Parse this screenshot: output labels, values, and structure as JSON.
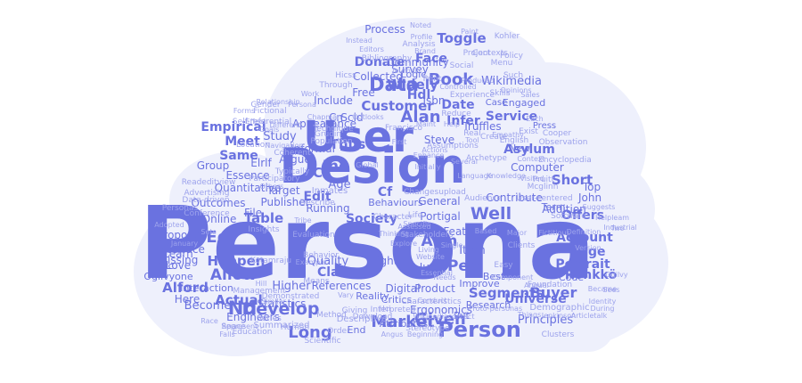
{
  "colors": {
    "background": "#ffffff",
    "cloud_fill": "#eef0fc",
    "word_main": "#6a72e0",
    "word_light": "#9da3ec",
    "word_faint": "#b9bdf2"
  },
  "words": [
    {
      "text": "Persona",
      "tier": "main"
    },
    {
      "text": "Design",
      "tier": "main"
    },
    {
      "text": "User",
      "tier": "main"
    },
    {
      "text": "Person",
      "tier": "main"
    },
    {
      "text": "Data",
      "tier": "main"
    },
    {
      "text": "Book",
      "tier": "main"
    },
    {
      "text": "Alan",
      "tier": "main"
    },
    {
      "text": "Well",
      "tier": "main"
    },
    {
      "text": "Market",
      "tier": "main"
    },
    {
      "text": "Given",
      "tier": "main"
    },
    {
      "text": "Nd",
      "tier": "main"
    },
    {
      "text": "Develop",
      "tier": "main"
    },
    {
      "text": "Long",
      "tier": "main"
    },
    {
      "text": "Customer",
      "tier": "main"
    },
    {
      "text": "Hdl",
      "tier": "main"
    },
    {
      "text": "Inc",
      "tier": "main"
    },
    {
      "text": "Thus",
      "tier": "main"
    },
    {
      "text": "Account",
      "tier": "main"
    },
    {
      "text": "Portrait",
      "tier": "main"
    },
    {
      "text": "Segments",
      "tier": "main"
    },
    {
      "text": "Buyer",
      "tier": "main"
    },
    {
      "text": "Society",
      "tier": "main"
    },
    {
      "text": "Acm",
      "tier": "main"
    },
    {
      "text": "Pen",
      "tier": "main"
    },
    {
      "text": "Item",
      "tier": "main"
    },
    {
      "text": "Claim",
      "tier": "main"
    },
    {
      "text": "Table",
      "tier": "main"
    },
    {
      "text": "Ed",
      "tier": "main"
    },
    {
      "text": "Allow",
      "tier": "main"
    },
    {
      "text": "Happen",
      "tier": "main"
    },
    {
      "text": "Actual",
      "tier": "main"
    },
    {
      "text": "Alford",
      "tier": "main"
    },
    {
      "text": "Short",
      "tier": "main"
    },
    {
      "text": "Edge",
      "tier": "main"
    },
    {
      "text": "Face",
      "tier": "main"
    },
    {
      "text": "Toggle",
      "tier": "main"
    },
    {
      "text": "Process",
      "tier": "main"
    },
    {
      "text": "Donate",
      "tier": "main"
    },
    {
      "text": "Date",
      "tier": "main"
    },
    {
      "text": "Infer",
      "tier": "main"
    },
    {
      "text": "Service",
      "tier": "main"
    },
    {
      "text": "Meet",
      "tier": "main"
    },
    {
      "text": "Same",
      "tier": "main"
    },
    {
      "text": "Edit",
      "tier": "main"
    },
    {
      "text": "Cs",
      "tier": "main"
    },
    {
      "text": "Empirical",
      "tier": "main"
    },
    {
      "text": "Study",
      "tier": "main"
    },
    {
      "text": "Age",
      "tier": "main"
    },
    {
      "text": "Widely",
      "tier": "main"
    },
    {
      "text": "Cf",
      "tier": "main"
    },
    {
      "text": "Universe",
      "tier": "main"
    },
    {
      "text": "Offers",
      "tier": "main"
    },
    {
      "text": "Rönkkö",
      "tier": "main"
    },
    {
      "text": "Principles",
      "tier": "main"
    },
    {
      "text": "Higher",
      "tier": "main"
    },
    {
      "text": "References",
      "tier": "main"
    },
    {
      "text": "Become",
      "tier": "main"
    },
    {
      "text": "Here",
      "tier": "main"
    },
    {
      "text": "Love",
      "tier": "main"
    },
    {
      "text": "Learn",
      "tier": "main"
    },
    {
      "text": "Missing",
      "tier": "main"
    },
    {
      "text": "Proposed",
      "tier": "main"
    },
    {
      "text": "Interface",
      "tier": "main"
    },
    {
      "text": "Introduce",
      "tier": "main"
    },
    {
      "text": "Engineers",
      "tier": "main"
    },
    {
      "text": "Asylum",
      "tier": "main"
    },
    {
      "text": "Wikimedia",
      "tier": "main"
    },
    {
      "text": "Survey",
      "tier": "main"
    },
    {
      "text": "Community",
      "tier": "main"
    },
    {
      "text": "Collected",
      "tier": "main"
    },
    {
      "text": "Free",
      "tier": "main"
    },
    {
      "text": "Include",
      "tier": "main"
    },
    {
      "text": "Appearance",
      "tier": "main"
    },
    {
      "text": "Group",
      "tier": "main"
    },
    {
      "text": "Elrlf",
      "tier": "main"
    },
    {
      "text": "Essence",
      "tier": "main"
    },
    {
      "text": "Quantitative",
      "tier": "main"
    },
    {
      "text": "File",
      "tier": "main"
    },
    {
      "text": "Target",
      "tier": "main"
    },
    {
      "text": "Publisher",
      "tier": "main"
    },
    {
      "text": "Running",
      "tier": "main"
    },
    {
      "text": "Behaviours",
      "tier": "main"
    },
    {
      "text": "General",
      "tier": "main"
    },
    {
      "text": "Portigal",
      "tier": "main"
    },
    {
      "text": "Feature",
      "tier": "main"
    },
    {
      "text": "Contribute",
      "tier": "main"
    },
    {
      "text": "Addition",
      "tier": "main"
    },
    {
      "text": "Computer",
      "tier": "main"
    },
    {
      "text": "Attributes",
      "tier": "main"
    },
    {
      "text": "Digital",
      "tier": "main"
    },
    {
      "text": "Product",
      "tier": "main"
    },
    {
      "text": "Put",
      "tier": "main"
    },
    {
      "text": "Improve",
      "tier": "main"
    },
    {
      "text": "Jump",
      "tier": "main"
    },
    {
      "text": "Best",
      "tier": "main"
    },
    {
      "text": "Quality",
      "tier": "main"
    },
    {
      "text": "Eight",
      "tier": "main"
    },
    {
      "text": "Steve",
      "tier": "main"
    },
    {
      "text": "Truffles",
      "tier": "main"
    },
    {
      "text": "Informal",
      "tier": "main"
    },
    {
      "text": "Argue",
      "tier": "main"
    },
    {
      "text": "Cn",
      "tier": "main"
    },
    {
      "text": "Scid",
      "tier": "main"
    },
    {
      "text": "Isbn",
      "tier": "main"
    },
    {
      "text": "Reality",
      "tier": "main"
    },
    {
      "text": "Critics",
      "tier": "main"
    },
    {
      "text": "Ergonomics",
      "tier": "main"
    },
    {
      "text": "Research",
      "tier": "main"
    },
    {
      "text": "End",
      "tier": "main"
    },
    {
      "text": "Statistics",
      "tier": "main"
    },
    {
      "text": "San",
      "tier": "main"
    },
    {
      "text": "Online",
      "tier": "main"
    },
    {
      "text": "Outcomes",
      "tier": "main"
    },
    {
      "text": "Interaction",
      "tier": "main"
    },
    {
      "text": "Ogilvyone",
      "tier": "main"
    },
    {
      "text": "Etc",
      "tier": "main"
    },
    {
      "text": "Draw",
      "tier": "main"
    },
    {
      "text": "Top",
      "tier": "main"
    },
    {
      "text": "John",
      "tier": "main"
    },
    {
      "text": "Code",
      "tier": "main"
    },
    {
      "text": "Term",
      "tier": "main"
    },
    {
      "text": "Logic",
      "tier": "main"
    },
    {
      "text": "New",
      "tier": "main"
    },
    {
      "text": "Engaged",
      "tier": "main"
    },
    {
      "text": "Case",
      "tier": "main"
    },
    {
      "text": "Press",
      "tier": "main"
    },
    {
      "text": "Summarized",
      "tier": "light"
    },
    {
      "text": "Descriptive",
      "tier": "light"
    },
    {
      "text": "Interpreted",
      "tier": "light"
    },
    {
      "text": "Characteristics",
      "tier": "light"
    },
    {
      "text": "Demographic",
      "tier": "light"
    },
    {
      "text": "Clusters",
      "tier": "light"
    },
    {
      "text": "Foundation",
      "tier": "light"
    },
    {
      "text": "Management",
      "tier": "light"
    },
    {
      "text": "Demonstrated",
      "tier": "light"
    },
    {
      "text": "Inmates",
      "tier": "light"
    },
    {
      "text": "Describe",
      "tier": "light"
    },
    {
      "text": "Participatory",
      "tier": "light"
    },
    {
      "text": "Typically",
      "tier": "light"
    },
    {
      "text": "Coherent",
      "tier": "light"
    },
    {
      "text": "Changesupload",
      "tier": "light"
    },
    {
      "text": "Audience",
      "tier": "light"
    },
    {
      "text": "Archetype",
      "tier": "light"
    },
    {
      "text": "Encyclopedia",
      "tier": "light"
    },
    {
      "text": "Observation",
      "tier": "light"
    },
    {
      "text": "Mcglinn",
      "tier": "light"
    },
    {
      "text": "Pruitt",
      "tier": "light"
    },
    {
      "text": "User-centered",
      "tier": "light"
    },
    {
      "text": "Software",
      "tier": "light"
    },
    {
      "text": "Conference",
      "tier": "light"
    },
    {
      "text": "Advertising",
      "tier": "light"
    },
    {
      "text": "Readeditview",
      "tier": "light"
    },
    {
      "text": "Data-driven",
      "tier": "light"
    },
    {
      "text": "Personas",
      "tier": "light"
    },
    {
      "text": "Bibliography",
      "tier": "light"
    },
    {
      "text": "Hicss",
      "tier": "light"
    },
    {
      "text": "Self-referential",
      "tier": "light"
    },
    {
      "text": "Fictional",
      "tier": "light"
    },
    {
      "text": "Gender",
      "tier": "light"
    },
    {
      "text": "Location",
      "tier": "light"
    },
    {
      "text": "Grudin",
      "tier": "light"
    },
    {
      "text": "Population",
      "tier": "light"
    },
    {
      "text": "Through",
      "tier": "light"
    },
    {
      "text": "Social",
      "tier": "light"
    },
    {
      "text": "Menu",
      "tier": "light"
    },
    {
      "text": "Policy",
      "tier": "light"
    },
    {
      "text": "Such",
      "tier": "light"
    },
    {
      "text": "Skills",
      "tier": "light"
    },
    {
      "text": "Kohler",
      "tier": "light"
    },
    {
      "text": "Contexts",
      "tier": "light"
    },
    {
      "text": "Project",
      "tier": "light"
    },
    {
      "text": "Analysis",
      "tier": "light"
    },
    {
      "text": "Print",
      "tier": "light"
    },
    {
      "text": "Experience",
      "tier": "light"
    },
    {
      "text": "Francisco",
      "tier": "light"
    },
    {
      "text": "Reduce",
      "tier": "light"
    },
    {
      "text": "Real",
      "tier": "light"
    },
    {
      "text": "English",
      "tier": "light"
    },
    {
      "text": "Create",
      "tier": "light"
    },
    {
      "text": "Exist",
      "tier": "light"
    },
    {
      "text": "Cooper",
      "tier": "light"
    },
    {
      "text": "Suggests",
      "tier": "light"
    },
    {
      "text": "Helpleam",
      "tier": "light"
    },
    {
      "text": "Industrial",
      "tier": "light"
    },
    {
      "text": "Version",
      "tier": "light"
    },
    {
      "text": "Identity",
      "tier": "light"
    },
    {
      "text": "During",
      "tier": "light"
    },
    {
      "text": "Became",
      "tier": "light"
    },
    {
      "text": "Ogilvy",
      "tier": "light"
    },
    {
      "text": "Articletalk",
      "tier": "light"
    },
    {
      "text": "Jenkinson",
      "tier": "light"
    },
    {
      "text": "Things",
      "tier": "light"
    },
    {
      "text": "Proto-personas",
      "tier": "light"
    },
    {
      "text": "Giving",
      "tier": "light"
    },
    {
      "text": "Human",
      "tier": "light"
    },
    {
      "text": "Order",
      "tier": "light"
    },
    {
      "text": "Scientific",
      "tier": "light"
    },
    {
      "text": "Education",
      "tier": "light"
    },
    {
      "text": "Space",
      "tier": "light"
    },
    {
      "text": "Race",
      "tier": "light"
    },
    {
      "text": "Represent",
      "tier": "light"
    },
    {
      "text": "Series",
      "tier": "light"
    },
    {
      "text": "Method",
      "tier": "light"
    },
    {
      "text": "Similar",
      "tier": "light"
    },
    {
      "text": "Download",
      "tier": "light"
    },
    {
      "text": "Stereotype",
      "tier": "light"
    },
    {
      "text": "Kotamraju",
      "tier": "light"
    },
    {
      "text": "Behavior",
      "tier": "light"
    },
    {
      "text": "Evaluation",
      "tier": "light"
    },
    {
      "text": "Tribe",
      "tier": "light"
    },
    {
      "text": "Clients",
      "tier": "light"
    },
    {
      "text": "Easy",
      "tier": "light"
    },
    {
      "text": "Website",
      "tier": "light"
    },
    {
      "text": "Essential",
      "tier": "light"
    },
    {
      "text": "Means",
      "tier": "light"
    },
    {
      "text": "Insights",
      "tier": "light"
    },
    {
      "text": "Adopted",
      "tier": "light"
    },
    {
      "text": "Sets",
      "tier": "light"
    },
    {
      "text": "Vary",
      "tier": "light"
    },
    {
      "text": "January",
      "tier": "light"
    },
    {
      "text": "Technique",
      "tier": "light"
    },
    {
      "text": "Actions",
      "tier": "light"
    },
    {
      "text": "Enhance",
      "tier": "light"
    },
    {
      "text": "Life",
      "tier": "light"
    },
    {
      "text": "Character",
      "tier": "light"
    },
    {
      "text": "Assessed",
      "tier": "light"
    },
    {
      "text": "Stakeholders",
      "tier": "light"
    },
    {
      "text": "Assumptions",
      "tier": "light"
    },
    {
      "text": "Knowledge",
      "tier": "light"
    },
    {
      "text": "Relationship",
      "tier": "light"
    },
    {
      "text": "Profile",
      "tier": "light"
    },
    {
      "text": "Brand",
      "tier": "light"
    },
    {
      "text": "Noted",
      "tier": "light"
    },
    {
      "text": "Produced",
      "tier": "light"
    },
    {
      "text": "Opinions",
      "tier": "light"
    },
    {
      "text": "Sales",
      "tier": "light"
    },
    {
      "text": "Each",
      "tier": "light"
    },
    {
      "text": "Tool",
      "tier": "light"
    },
    {
      "text": "Help",
      "tier": "light"
    },
    {
      "text": "First",
      "tier": "light"
    },
    {
      "text": "Maint",
      "tier": "light"
    },
    {
      "text": "Controlled",
      "tier": "light"
    },
    {
      "text": "Empathy",
      "tier": "light"
    },
    {
      "text": "Specific",
      "tier": "light"
    },
    {
      "text": "Living",
      "tier": "light"
    },
    {
      "text": "Explore",
      "tier": "light"
    },
    {
      "text": "Component",
      "tier": "light"
    },
    {
      "text": "Major",
      "tier": "light"
    },
    {
      "text": "Single",
      "tier": "light"
    },
    {
      "text": "Needs",
      "tier": "light"
    },
    {
      "text": "Hill",
      "tier": "light"
    },
    {
      "text": "Falls",
      "tier": "light"
    },
    {
      "text": "Chapman",
      "tier": "light"
    },
    {
      "text": "Navigation",
      "tier": "light"
    },
    {
      "text": "Conduct",
      "tier": "light"
    },
    {
      "text": "Hci",
      "tier": "light"
    },
    {
      "text": "Thinking",
      "tier": "light"
    },
    {
      "text": "Effect",
      "tier": "light"
    },
    {
      "text": "Others",
      "tier": "light"
    },
    {
      "text": "Outlooks",
      "tier": "light"
    },
    {
      "text": "Journal",
      "tier": "light"
    },
    {
      "text": "Paint",
      "tier": "light"
    },
    {
      "text": "Annual",
      "tier": "light"
    },
    {
      "text": "Two",
      "tier": "light"
    },
    {
      "text": "Definition",
      "tier": "light"
    },
    {
      "text": "Sees",
      "tier": "light"
    },
    {
      "text": "Wikipediacontact",
      "tier": "light"
    },
    {
      "text": "Beginning",
      "tier": "light"
    },
    {
      "text": "Angus",
      "tier": "light"
    },
    {
      "text": "Global",
      "tier": "light"
    },
    {
      "text": "Initially",
      "tier": "light"
    },
    {
      "text": "Several",
      "tier": "light"
    },
    {
      "text": "Different",
      "tier": "light"
    },
    {
      "text": "Goals",
      "tier": "light"
    },
    {
      "text": "Forms",
      "tier": "light"
    },
    {
      "text": "Instead",
      "tier": "light"
    },
    {
      "text": "Editors",
      "tier": "light"
    },
    {
      "text": "Visited",
      "tier": "light"
    },
    {
      "text": "Language",
      "tier": "light"
    },
    {
      "text": "Persona",
      "tier": "light"
    },
    {
      "text": "Work",
      "tier": "light"
    },
    {
      "text": "Context",
      "tier": "light"
    },
    {
      "text": "Example",
      "tier": "light"
    },
    {
      "text": "Based",
      "tier": "light"
    },
    {
      "text": "Fictitious",
      "tier": "light"
    },
    {
      "text": "Personal",
      "tier": "light"
    },
    {
      "text": "Habits",
      "tier": "light"
    }
  ]
}
